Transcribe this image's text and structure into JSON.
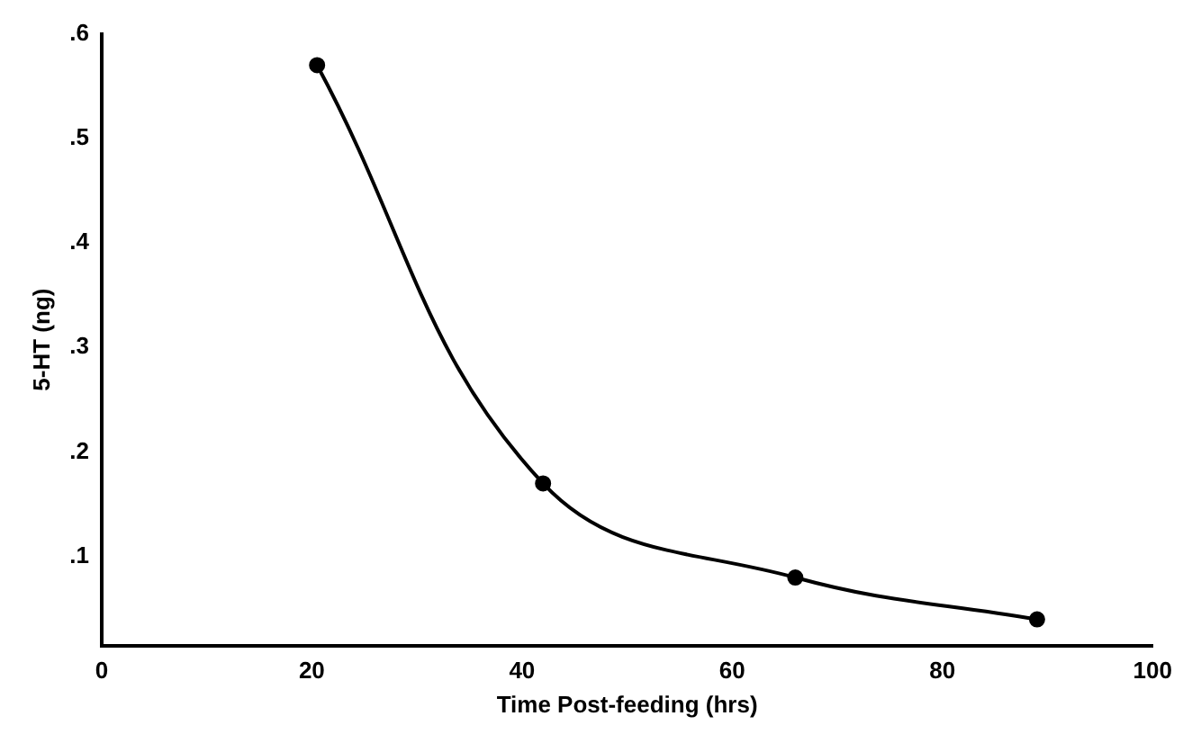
{
  "chart_data": {
    "type": "line",
    "xlabel": "Time Post-feeding (hrs)",
    "ylabel": "5-HT (ng)",
    "x": [
      20.5,
      42,
      66,
      89
    ],
    "series": [
      {
        "color": "#000000",
        "values": [
          0.57,
          0.17,
          0.08,
          0.04
        ]
      }
    ],
    "xlim": [
      0,
      100
    ],
    "xticks": [
      0,
      20,
      40,
      60,
      80,
      100
    ],
    "ylim": [
      0.015,
      0.6
    ],
    "yticks": [
      {
        "value": 0.1,
        "label": ".1"
      },
      {
        "value": 0.2,
        "label": ".2"
      },
      {
        "value": 0.3,
        "label": ".3"
      },
      {
        "value": 0.4,
        "label": ".4"
      },
      {
        "value": 0.5,
        "label": ".5"
      },
      {
        "value": 0.6,
        "label": ".6"
      }
    ],
    "grid": false,
    "legend": false,
    "marker": "circle",
    "line_style": "solid"
  }
}
